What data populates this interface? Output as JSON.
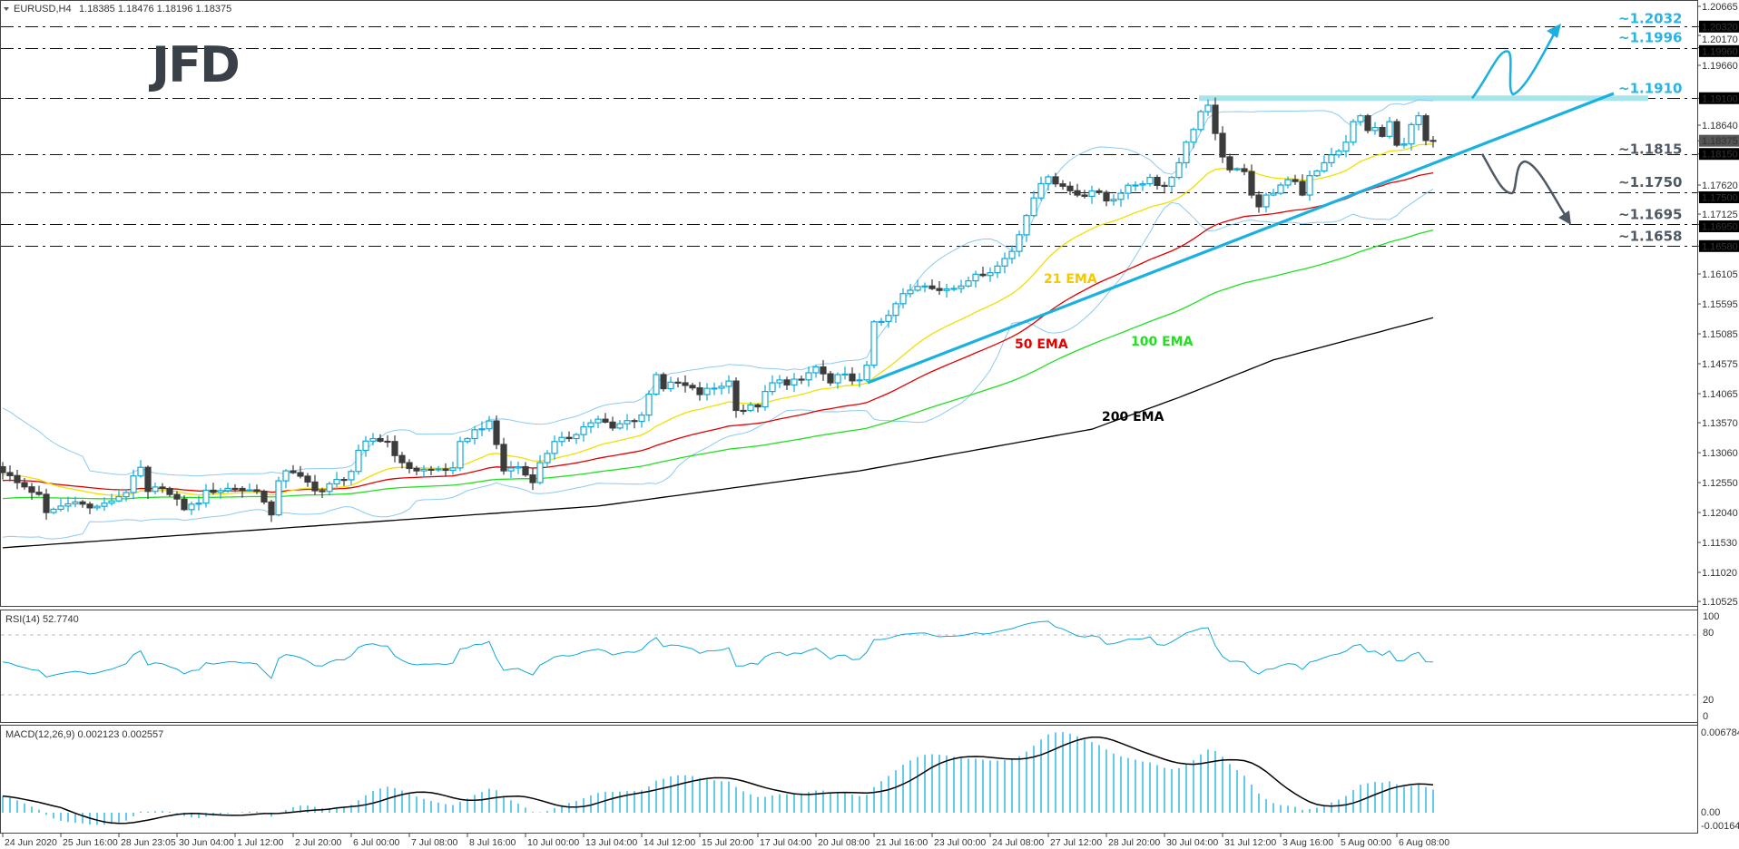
{
  "header": {
    "symbol": "EURUSD,H4",
    "ohlc": "1.18385 1.18476 1.18196 1.18375"
  },
  "logo": {
    "text": "JFD"
  },
  "colors": {
    "bull": "#10a8d8",
    "bear": "#3c3c3c",
    "trend": "#1ab0e0",
    "level_up": "#2ab4e4",
    "level_down": "#4f5964",
    "ema21": "#f0e000",
    "ema50": "#e00000",
    "ema100": "#20e020",
    "ema200": "#000000",
    "bands": "#8ccaf2",
    "band_zone": "#a8e4ec"
  },
  "rsi": {
    "title": "RSI(14) 52.7740",
    "scale": [
      "100",
      "80",
      "20",
      "0"
    ]
  },
  "macd": {
    "title": "MACD(12,26,9) 0.002123 0.002557",
    "scale": [
      "0.006784",
      "0.00",
      "-0.001646"
    ]
  },
  "ema_labels": {
    "ema21": "21 EMA",
    "ema50": "50 EMA",
    "ema100": "100 EMA",
    "ema200": "200 EMA"
  },
  "levels": [
    {
      "price": 1.2032,
      "label": "~1.2032",
      "tone": "up"
    },
    {
      "price": 1.1996,
      "label": "~1.1996",
      "tone": "up"
    },
    {
      "price": 1.191,
      "label": "~1.1910",
      "tone": "up"
    },
    {
      "price": 1.1815,
      "label": "~1.1815",
      "tone": "down"
    },
    {
      "price": 1.175,
      "label": "~1.1750",
      "tone": "down"
    },
    {
      "price": 1.1695,
      "label": "~1.1695",
      "tone": "down"
    },
    {
      "price": 1.1658,
      "label": "~1.1658",
      "tone": "down"
    }
  ],
  "chart_data": {
    "type": "candlestick",
    "title": "EURUSD,H4",
    "ylim": [
      1.10525,
      1.20665
    ],
    "price_axis": [
      {
        "v": "1.20665"
      },
      {
        "v": "1.20320",
        "hl": true
      },
      {
        "v": "1.20170"
      },
      {
        "v": "1.19960",
        "hl": true
      },
      {
        "v": "1.19660"
      },
      {
        "v": "1.19100",
        "hl": true
      },
      {
        "v": "1.18640"
      },
      {
        "v": "1.18375",
        "current": true
      },
      {
        "v": "1.18150",
        "hl": true
      },
      {
        "v": "1.17620"
      },
      {
        "v": "1.17500",
        "hl": true
      },
      {
        "v": "1.17125"
      },
      {
        "v": "1.16950",
        "hl": true
      },
      {
        "v": "1.16580",
        "hl": true
      },
      {
        "v": "1.16105"
      },
      {
        "v": "1.15595"
      },
      {
        "v": "1.15085"
      },
      {
        "v": "1.14575"
      },
      {
        "v": "1.14065"
      },
      {
        "v": "1.13570"
      },
      {
        "v": "1.13060"
      },
      {
        "v": "1.12550"
      },
      {
        "v": "1.12040"
      },
      {
        "v": "1.11530"
      },
      {
        "v": "1.11020"
      },
      {
        "v": "1.10525"
      }
    ],
    "time_labels": [
      "24 Jun 2020",
      "25 Jun 16:00",
      "28 Jun 23:05",
      "30 Jun 04:00",
      "1 Jul 12:00",
      "2 Jul 20:00",
      "6 Jul 00:00",
      "7 Jul 08:00",
      "8 Jul 16:00",
      "10 Jul 00:00",
      "13 Jul 04:00",
      "14 Jul 12:00",
      "15 Jul 20:00",
      "17 Jul 04:00",
      "20 Jul 08:00",
      "21 Jul 16:00",
      "23 Jul 00:00",
      "24 Jul 08:00",
      "27 Jul 12:00",
      "28 Jul 20:00",
      "30 Jul 04:00",
      "31 Jul 12:00",
      "3 Aug 16:00",
      "5 Aug 00:00",
      "6 Aug 08:00"
    ],
    "bars": 198,
    "close_anchors": [
      [
        0,
        1.1272
      ],
      [
        2,
        1.1255
      ],
      [
        5,
        1.1235
      ],
      [
        6,
        1.1204
      ],
      [
        8,
        1.1215
      ],
      [
        10,
        1.1222
      ],
      [
        12,
        1.1212
      ],
      [
        14,
        1.122
      ],
      [
        17,
        1.1238
      ],
      [
        19,
        1.1281
      ],
      [
        20,
        1.124
      ],
      [
        22,
        1.1245
      ],
      [
        25,
        1.1209
      ],
      [
        27,
        1.122
      ],
      [
        28,
        1.1242
      ],
      [
        32,
        1.1245
      ],
      [
        35,
        1.124
      ],
      [
        37,
        1.12
      ],
      [
        38,
        1.1258
      ],
      [
        39,
        1.1275
      ],
      [
        44,
        1.124
      ],
      [
        48,
        1.1274
      ],
      [
        49,
        1.131
      ],
      [
        51,
        1.133
      ],
      [
        53,
        1.1325
      ],
      [
        55,
        1.1289
      ],
      [
        57,
        1.1275
      ],
      [
        59,
        1.1277
      ],
      [
        62,
        1.128
      ],
      [
        63,
        1.1325
      ],
      [
        65,
        1.1345
      ],
      [
        67,
        1.136
      ],
      [
        68,
        1.132
      ],
      [
        69,
        1.1275
      ],
      [
        71,
        1.1282
      ],
      [
        73,
        1.1255
      ],
      [
        74,
        1.1289
      ],
      [
        76,
        1.1325
      ],
      [
        78,
        1.133
      ],
      [
        80,
        1.135
      ],
      [
        82,
        1.1363
      ],
      [
        84,
        1.1348
      ],
      [
        88,
        1.137
      ],
      [
        90,
        1.1439
      ],
      [
        91,
        1.1415
      ],
      [
        93,
        1.1425
      ],
      [
        96,
        1.1405
      ],
      [
        100,
        1.1428
      ],
      [
        101,
        1.1378
      ],
      [
        104,
        1.1384
      ],
      [
        106,
        1.1425
      ],
      [
        110,
        1.143
      ],
      [
        112,
        1.1452
      ],
      [
        114,
        1.1425
      ],
      [
        116,
        1.144
      ],
      [
        118,
        1.143
      ],
      [
        119,
        1.1455
      ],
      [
        120,
        1.1529
      ],
      [
        122,
        1.154
      ],
      [
        124,
        1.1577
      ],
      [
        127,
        1.159
      ],
      [
        130,
        1.1585
      ],
      [
        132,
        1.159
      ],
      [
        134,
        1.161
      ],
      [
        137,
        1.1624
      ],
      [
        139,
        1.1649
      ],
      [
        141,
        1.171
      ],
      [
        142,
        1.174
      ],
      [
        144,
        1.1776
      ],
      [
        146,
        1.176
      ],
      [
        148,
        1.1745
      ],
      [
        150,
        1.1752
      ],
      [
        152,
        1.1735
      ],
      [
        154,
        1.1748
      ],
      [
        156,
        1.1762
      ],
      [
        158,
        1.1775
      ],
      [
        160,
        1.176
      ],
      [
        161,
        1.1775
      ],
      [
        163,
        1.1835
      ],
      [
        165,
        1.1887
      ],
      [
        166,
        1.1898
      ],
      [
        167,
        1.185
      ],
      [
        168,
        1.181
      ],
      [
        169,
        1.1788
      ],
      [
        171,
        1.1785
      ],
      [
        172,
        1.1745
      ],
      [
        173,
        1.1725
      ],
      [
        174,
        1.1745
      ],
      [
        176,
        1.1762
      ],
      [
        178,
        1.1768
      ],
      [
        179,
        1.1745
      ],
      [
        180,
        1.1778
      ],
      [
        182,
        1.18
      ],
      [
        184,
        1.182
      ],
      [
        185,
        1.1835
      ],
      [
        186,
        1.187
      ],
      [
        187,
        1.188
      ],
      [
        188,
        1.1855
      ],
      [
        189,
        1.186
      ],
      [
        190,
        1.1845
      ],
      [
        191,
        1.187
      ],
      [
        192,
        1.183
      ],
      [
        193,
        1.1832
      ],
      [
        194,
        1.1865
      ],
      [
        195,
        1.188
      ],
      [
        196,
        1.1838
      ],
      [
        197,
        1.18375
      ]
    ],
    "ema_seeds": {
      "ema21": 1.1268,
      "ema50": 1.1258,
      "ema100": 1.1227
    },
    "ema200_anchors": [
      [
        0,
        1.1144
      ],
      [
        82,
        1.1215
      ],
      [
        118,
        1.1275
      ],
      [
        150,
        1.1346
      ],
      [
        162,
        1.14
      ],
      [
        175,
        1.1464
      ],
      [
        197,
        1.1536
      ]
    ],
    "trendline": {
      "from": [
        119,
        1.14251
      ],
      "to": [
        221,
        1.1918
      ]
    },
    "resistance_zone": {
      "price": 1.191,
      "from_bar": 165
    },
    "scenario_up": {
      "from": 1.191,
      "targets": [
        1.1996,
        1.2032
      ]
    },
    "scenario_down": {
      "from": 1.1815,
      "targets": [
        1.175,
        1.1695
      ]
    }
  }
}
